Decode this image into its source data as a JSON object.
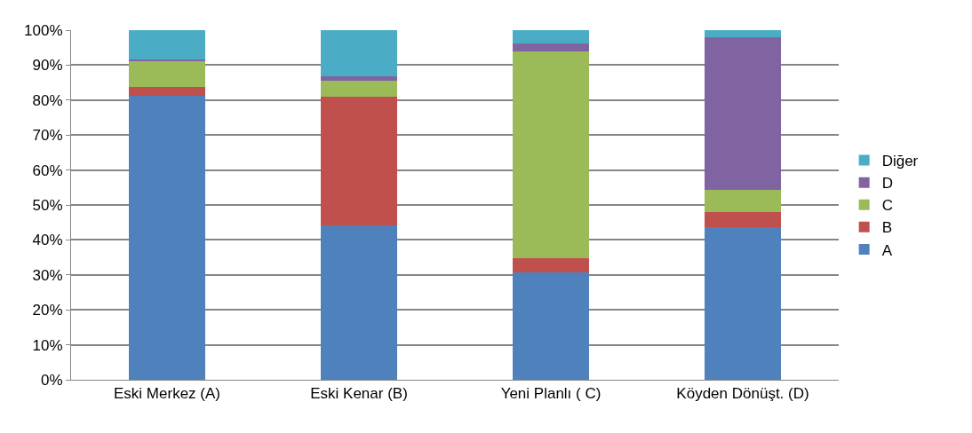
{
  "chart_data": {
    "type": "bar",
    "stacked": true,
    "categories": [
      "Eski Merkez (A)",
      "Eski Kenar (B)",
      "Yeni Planlı ( C)",
      "Köyden Dönüşt. (D)"
    ],
    "series": [
      {
        "name": "A",
        "color": "#4f81bd",
        "values": [
          81.1,
          44.1,
          30.6,
          43.6
        ]
      },
      {
        "name": "B",
        "color": "#c0504d",
        "values": [
          2.7,
          36.9,
          4.1,
          4.4
        ]
      },
      {
        "name": "C",
        "color": "#9bbb59",
        "values": [
          7.2,
          4.5,
          59.3,
          6.3
        ]
      },
      {
        "name": "D",
        "color": "#8064a2",
        "values": [
          0.7,
          1.4,
          2.1,
          43.7
        ]
      },
      {
        "name": "Diğer",
        "color": "#4bacc6",
        "values": [
          8.3,
          13.1,
          3.9,
          2.0
        ]
      }
    ],
    "ylim": [
      0,
      100
    ],
    "yticks": [
      {
        "value": 0,
        "label": "0%"
      },
      {
        "value": 10,
        "label": "10%"
      },
      {
        "value": 20,
        "label": "20%"
      },
      {
        "value": 30,
        "label": "30%"
      },
      {
        "value": 40,
        "label": "40%"
      },
      {
        "value": 50,
        "label": "50%"
      },
      {
        "value": 60,
        "label": "60%"
      },
      {
        "value": 70,
        "label": "70%"
      },
      {
        "value": 80,
        "label": "80%"
      },
      {
        "value": 90,
        "label": "90%"
      },
      {
        "value": 100,
        "label": "100%"
      }
    ],
    "grid": "y",
    "legend": "right"
  }
}
